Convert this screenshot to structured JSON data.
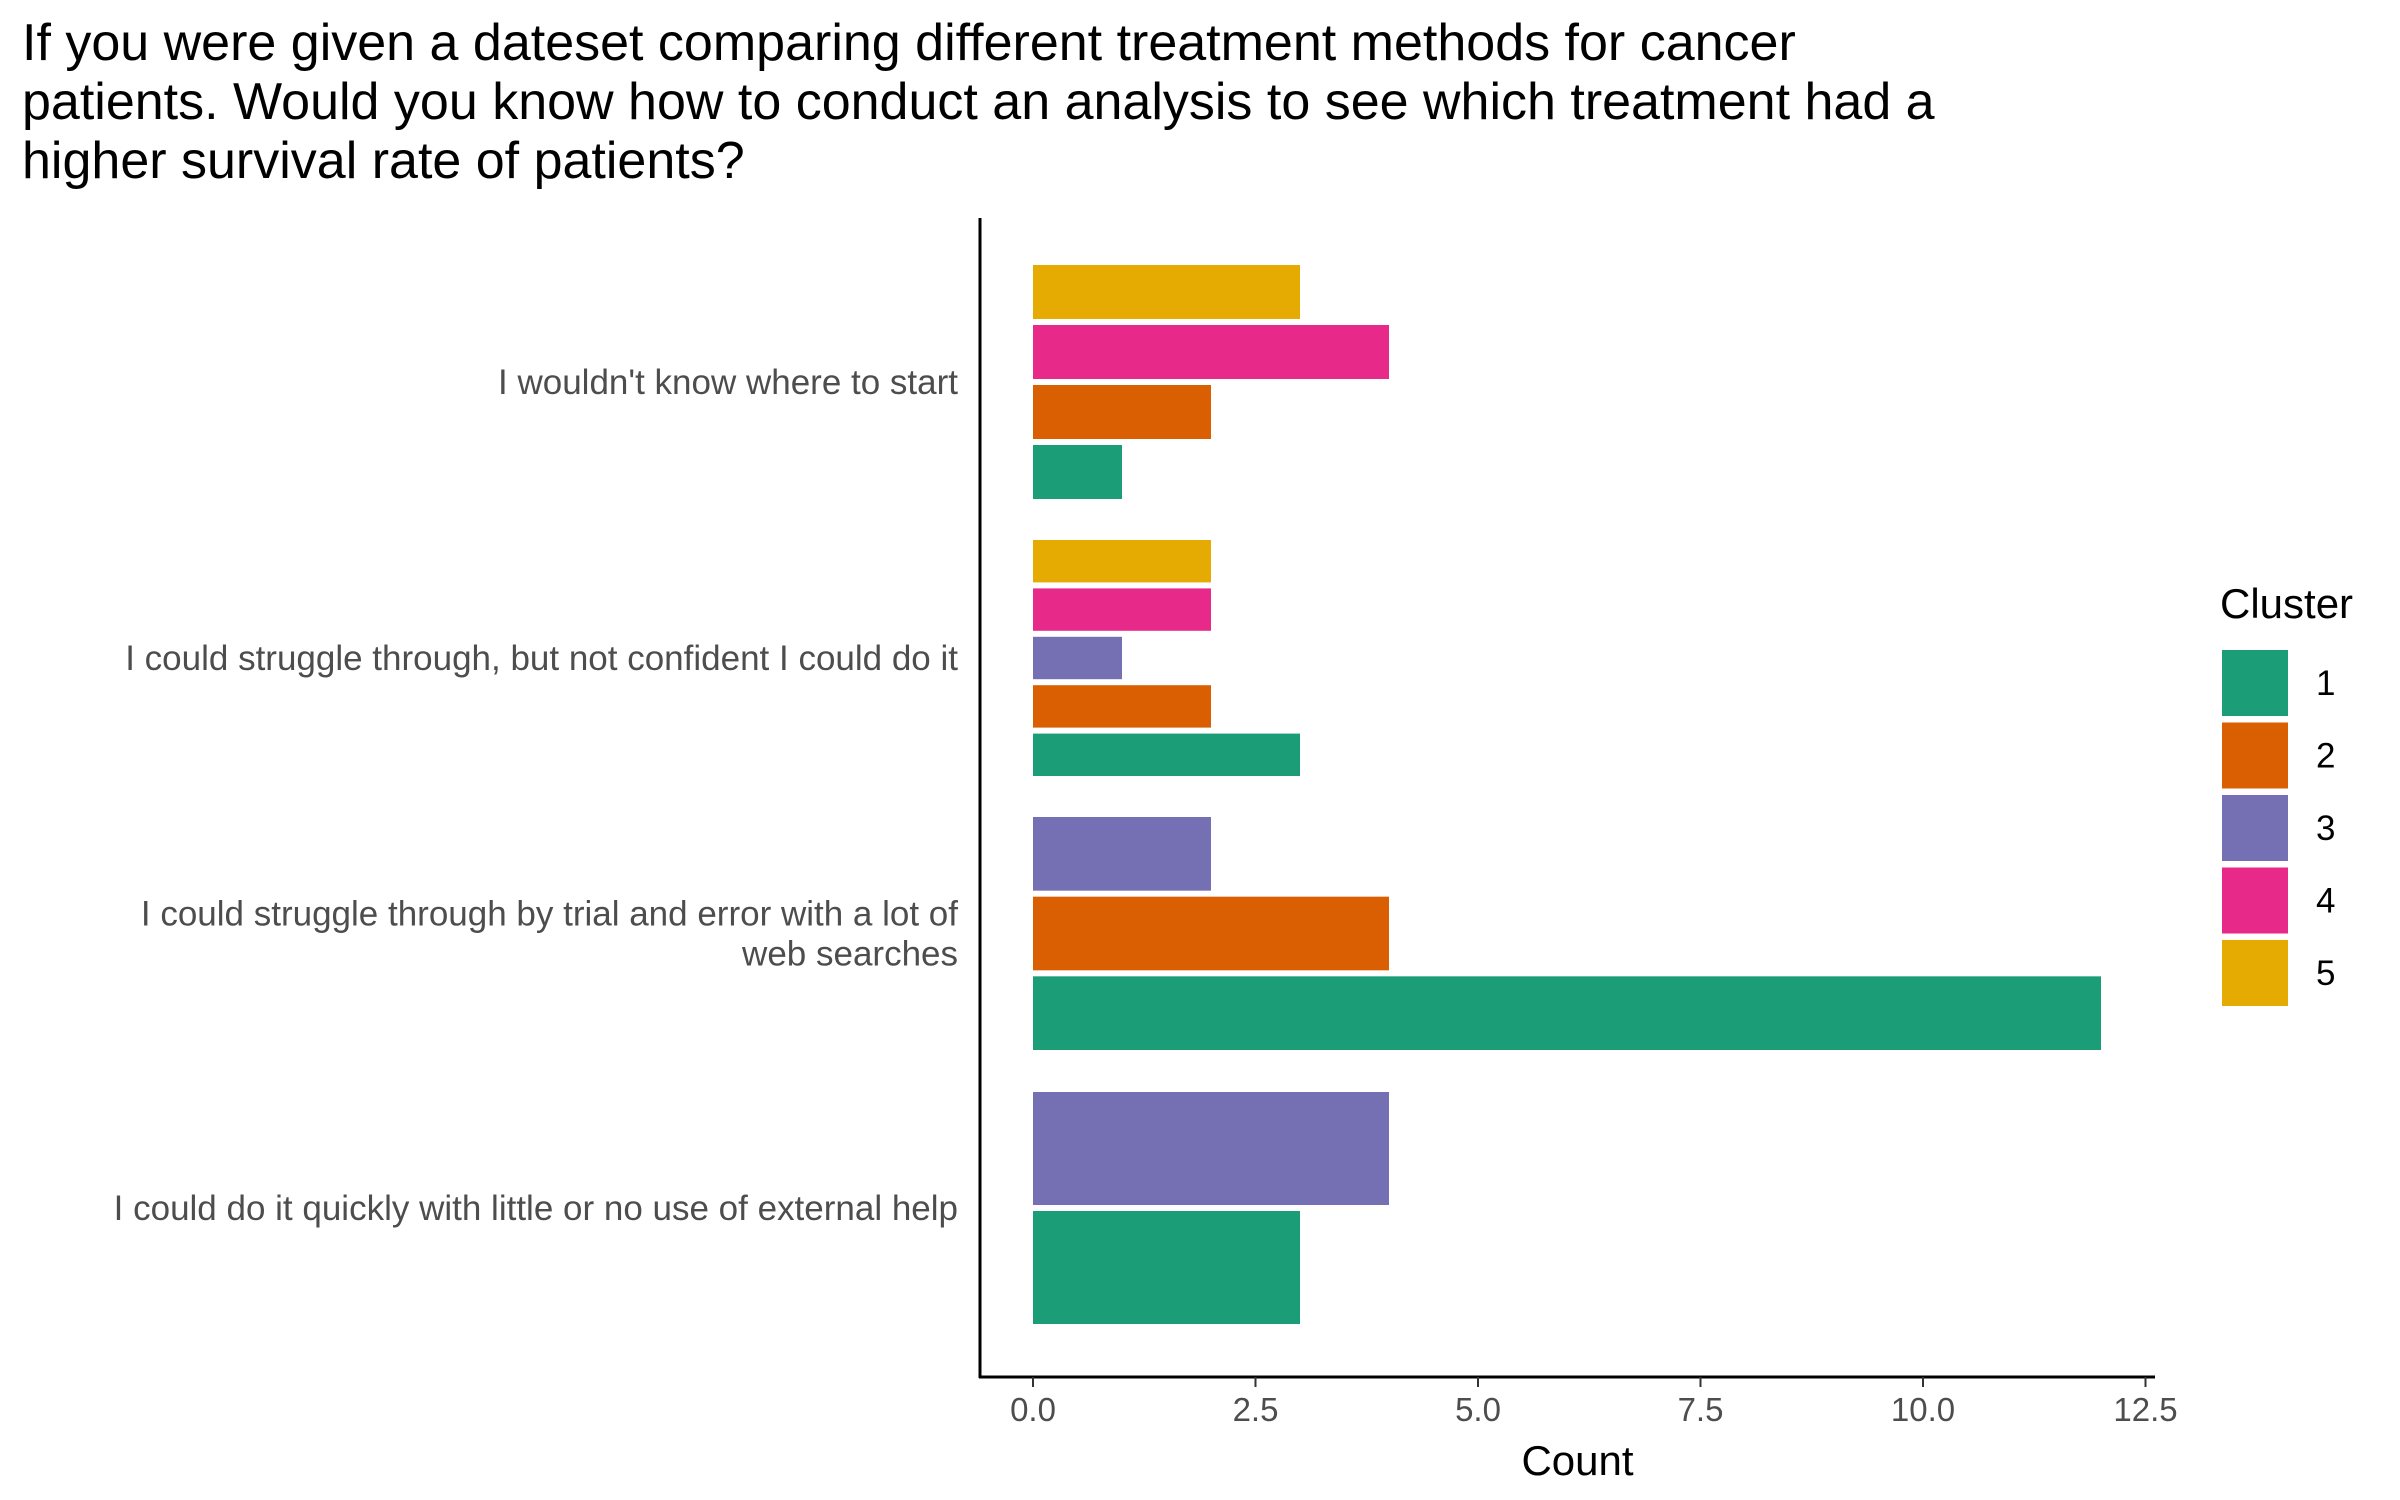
{
  "chart_data": {
    "type": "bar",
    "orientation": "horizontal",
    "title_lines": [
      "If you were given a dateset comparing different treatment methods for cancer",
      "patients. Would you know how to conduct an analysis to see which treatment had a",
      "higher survival rate of patients?"
    ],
    "xlabel": "Count",
    "ylabel": "",
    "xlim": [
      0,
      12.5
    ],
    "x_ticks": [
      "0.0",
      "2.5",
      "5.0",
      "7.5",
      "10.0",
      "12.5"
    ],
    "grid": false,
    "legend_title": "Cluster",
    "legend_position": "right",
    "legend": [
      {
        "name": "1",
        "color": "#1b9e77"
      },
      {
        "name": "2",
        "color": "#d95f02"
      },
      {
        "name": "3",
        "color": "#7570b3"
      },
      {
        "name": "4",
        "color": "#e7298a"
      },
      {
        "name": "5",
        "color": "#e6ab02"
      }
    ],
    "categories": [
      {
        "label_lines": [
          "I wouldn't know where to start"
        ],
        "bars": [
          {
            "cluster": "5",
            "value": 3
          },
          {
            "cluster": "4",
            "value": 4
          },
          {
            "cluster": "2",
            "value": 2
          },
          {
            "cluster": "1",
            "value": 1
          }
        ]
      },
      {
        "label_lines": [
          "I could struggle through, but not confident I could do it"
        ],
        "bars": [
          {
            "cluster": "5",
            "value": 2
          },
          {
            "cluster": "4",
            "value": 2
          },
          {
            "cluster": "3",
            "value": 1
          },
          {
            "cluster": "2",
            "value": 2
          },
          {
            "cluster": "1",
            "value": 3
          }
        ]
      },
      {
        "label_lines": [
          "I could struggle through by trial and error with a lot of",
          "web searches"
        ],
        "bars": [
          {
            "cluster": "3",
            "value": 2
          },
          {
            "cluster": "2",
            "value": 4
          },
          {
            "cluster": "1",
            "value": 12
          }
        ]
      },
      {
        "label_lines": [
          "I could do it quickly with little or no use of external help"
        ],
        "bars": [
          {
            "cluster": "3",
            "value": 4
          },
          {
            "cluster": "1",
            "value": 3
          }
        ]
      }
    ]
  }
}
